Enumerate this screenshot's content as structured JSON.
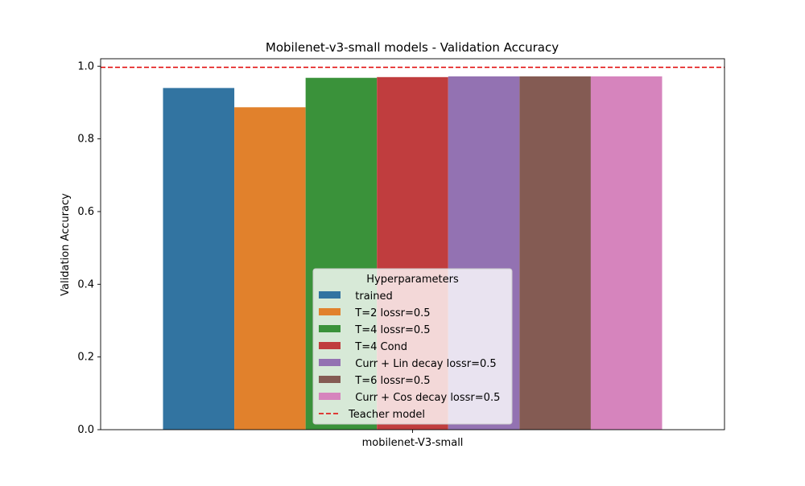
{
  "chart_data": {
    "type": "bar",
    "title": "Mobilenet-v3-small models - Validation Accuracy",
    "xlabel": "",
    "ylabel": "Validation Accuracy",
    "categories": [
      "mobilenet-V3-small"
    ],
    "ylim": [
      0,
      1.0
    ],
    "yticks": [
      "0.0",
      "0.2",
      "0.4",
      "0.6",
      "0.8",
      "1.0"
    ],
    "grid": false,
    "legend": {
      "title": "Hyperparameters",
      "placement": "lower center"
    },
    "series": [
      {
        "name": "  trained",
        "values": [
          0.94
        ],
        "color": "#3274a1"
      },
      {
        "name": "  T=2 lossr=0.5",
        "values": [
          0.887
        ],
        "color": "#e1812c"
      },
      {
        "name": "  T=4 lossr=0.5",
        "values": [
          0.968
        ],
        "color": "#3a923a"
      },
      {
        "name": "  T=4 Cond",
        "values": [
          0.97
        ],
        "color": "#c03d3e"
      },
      {
        "name": "  Curr + Lin decay lossr=0.5",
        "values": [
          0.972
        ],
        "color": "#9372b2"
      },
      {
        "name": "  T=6 lossr=0.5",
        "values": [
          0.972
        ],
        "color": "#845b53"
      },
      {
        "name": "  Curr + Cos decay lossr=0.5",
        "values": [
          0.972
        ],
        "color": "#d684bd"
      }
    ],
    "reference_line": {
      "name": "Teacher model",
      "value": 0.997,
      "color": "#e00000",
      "style": "dashed"
    }
  }
}
